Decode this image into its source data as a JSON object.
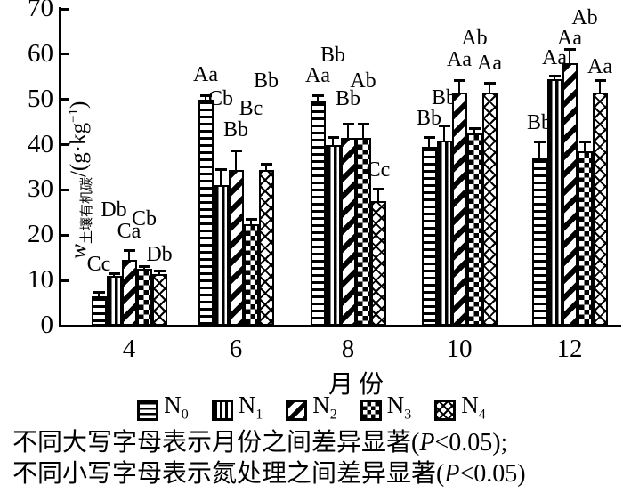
{
  "chart_data": {
    "type": "bar",
    "title": "",
    "xlabel": "月份",
    "ylabel": {
      "symbol": "w",
      "subscript": "土壤有机碳",
      "unit_pre": "/(g·kg",
      "unit_sup": "−1",
      "unit_post": ")"
    },
    "ylim": [
      0,
      70
    ],
    "yticks": [
      "0",
      "10",
      "20",
      "30",
      "40",
      "50",
      "60",
      "70"
    ],
    "categories": [
      "4",
      "6",
      "8",
      "10",
      "12"
    ],
    "grid": false,
    "legend_position": "bottom",
    "series": [
      {
        "label_main": "N",
        "label_sub": "0",
        "pattern": "horizontal",
        "values": [
          6.5,
          50,
          49.5,
          39.5,
          37
        ],
        "errors": [
          0.7,
          0.7,
          1.2,
          2,
          3.5
        ],
        "letters": [
          "Cc",
          "Aa",
          "Aa",
          "Bb",
          "Bb"
        ],
        "letter_y": [
          13.6,
          55.5,
          55.3,
          45.8,
          44.9
        ]
      },
      {
        "label_main": "N",
        "label_sub": "1",
        "pattern": "vertical",
        "values": [
          11,
          31,
          40,
          41,
          54.5
        ],
        "errors": [
          0.5,
          3.5,
          1.5,
          3,
          0.5
        ],
        "letters": [
          "Db",
          "Cb",
          "Bb",
          "Bb",
          "Aa"
        ],
        "letter_y": [
          25.5,
          50.2,
          59.7,
          50.4,
          59.1
        ]
      },
      {
        "label_main": "N",
        "label_sub": "2",
        "pattern": "diagonal",
        "values": [
          14.5,
          34.5,
          41.5,
          51.5,
          58
        ],
        "errors": [
          2,
          4,
          3,
          2.5,
          3
        ],
        "letters": [
          "Ca",
          "Bb",
          "Bb",
          "Aa",
          "Aa"
        ],
        "letter_y": [
          20.8,
          43.3,
          50.2,
          58.7,
          63.6
        ]
      },
      {
        "label_main": "N",
        "label_sub": "3",
        "pattern": "checker",
        "values": [
          12.5,
          22.5,
          41.5,
          42.5,
          38.5
        ],
        "errors": [
          0.5,
          1,
          3,
          1,
          2
        ],
        "letters": [
          "Cb",
          "Bc",
          "Ab",
          "Ab",
          "Ab"
        ],
        "letter_y": [
          23.5,
          48.0,
          54.0,
          63.6,
          68.0
        ]
      },
      {
        "label_main": "N",
        "label_sub": "4",
        "pattern": "crosshatch",
        "values": [
          11.5,
          34.5,
          27.5,
          51.5,
          51.5
        ],
        "errors": [
          0.5,
          1,
          2.5,
          2,
          2.5
        ],
        "letters": [
          "Db",
          "Bb",
          "Cc",
          "Aa",
          "Aa"
        ],
        "letter_y": [
          15.8,
          54.0,
          34.4,
          58.1,
          57.3
        ]
      }
    ]
  },
  "caption": {
    "line1_pre": "不同大写字母表示月份之间差异显著(",
    "line1_p": "P",
    "line1_post": "<0.05);",
    "line2_pre": "不同小写字母表示氮处理之间差异显著(",
    "line2_p": "P",
    "line2_post": "<0.05)"
  }
}
